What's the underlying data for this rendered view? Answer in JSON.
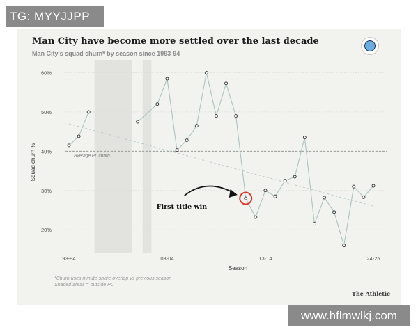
{
  "watermarks": {
    "top": "TG: MYYJJPP",
    "bottom": "www.hflmwlkj.com"
  },
  "header": {
    "title": "Man City have become more settled over the last decade",
    "subtitle": "Man City's squad churn* by season since 1993-94"
  },
  "footer": {
    "note_line1": "*Churn uses minute-share overlap vs previous season",
    "note_line2": "Shaded areas = outside PL",
    "brand": "The Athletic"
  },
  "chart_data": {
    "type": "line",
    "title": "Man City have become more settled over the last decade",
    "subtitle": "Man City's squad churn* by season since 1993-94",
    "xlabel": "Season",
    "ylabel": "Squad churn %",
    "ylim": [
      14,
      64
    ],
    "yticks": [
      20,
      30,
      40,
      50,
      60
    ],
    "ytick_labels": [
      "20%",
      "30%",
      "40%",
      "50%",
      "60%"
    ],
    "xrange": [
      0,
      31
    ],
    "xticks": [
      0,
      10,
      20,
      31
    ],
    "xtick_labels": [
      "93-94",
      "03-04",
      "13-14",
      "24-25"
    ],
    "x": [
      0,
      1,
      2,
      7,
      9,
      10,
      11,
      12,
      13,
      14,
      15,
      16,
      17,
      18,
      19,
      20,
      21,
      22,
      23,
      24,
      25,
      26,
      27,
      28,
      29,
      30,
      31
    ],
    "y": [
      41.5,
      43.8,
      50,
      47.5,
      52,
      58.5,
      40.3,
      42.8,
      46.5,
      60,
      49,
      57.3,
      49,
      28,
      23.2,
      30,
      28.5,
      32.5,
      33.5,
      43.5,
      21.5,
      28.2,
      24.5,
      16,
      31,
      28.3,
      31.2
    ],
    "shaded_ranges": [
      [
        2.6,
        6.4
      ],
      [
        7.5,
        8.4
      ]
    ],
    "average": {
      "value": 40,
      "label": "Average PL churn"
    },
    "trend": {
      "from": [
        0,
        47
      ],
      "to": [
        31,
        26
      ]
    },
    "annotation": {
      "label": "First title win",
      "x": 18,
      "y": 28
    },
    "colors": {
      "line": "#a9c4c2",
      "accent": "#e0382b",
      "grid": "#d8d8d4",
      "shade": "#e2e2de"
    }
  }
}
